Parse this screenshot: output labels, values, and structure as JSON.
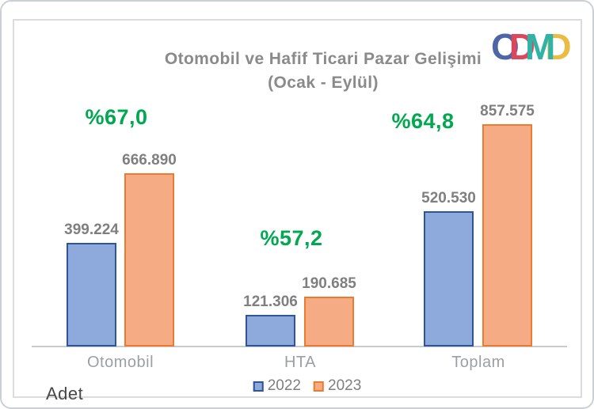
{
  "title": {
    "line1": "Otomobil ve Hafif Ticari Pazar Gelişimi",
    "line2": "(Ocak - Eylül)"
  },
  "logo": {
    "name": "ODMD",
    "letters": [
      {
        "char": "O",
        "color": "#4E66A8",
        "z": 1
      },
      {
        "char": "D",
        "color": "#D9485C",
        "z": 2
      },
      {
        "char": "M",
        "color": "#2FB3A4",
        "z": 4
      },
      {
        "char": "D",
        "color": "#EBBC44",
        "z": 3
      }
    ]
  },
  "axis_unit_label": "Adet",
  "legend": [
    {
      "label": "2022",
      "fill": "#8EA9DB",
      "border": "#2E5597"
    },
    {
      "label": "2023",
      "fill": "#F5AC85",
      "border": "#EC7B30"
    }
  ],
  "chart_data": {
    "type": "bar",
    "title": "Otomobil ve Hafif Ticari Pazar Gelişimi (Ocak - Eylül)",
    "categories": [
      "Otomobil",
      "HTA",
      "Toplam"
    ],
    "series": [
      {
        "name": "2022",
        "values": [
          399224,
          121306,
          520530
        ],
        "value_labels": [
          "399.224",
          "121.306",
          "520.530"
        ],
        "fill": "#8EA9DB",
        "border": "#2E5597"
      },
      {
        "name": "2023",
        "values": [
          666890,
          190685,
          857575
        ],
        "value_labels": [
          "666.890",
          "190.685",
          "857.575"
        ],
        "fill": "#F5AC85",
        "border": "#EC7B30"
      }
    ],
    "growth_labels": [
      "%67,0",
      "%57,2",
      "%64,8"
    ],
    "growth_values_percent": [
      67.0,
      57.2,
      64.8
    ],
    "growth_color": "#00A84F",
    "ylabel": "Adet",
    "grid": false,
    "legend_position": "bottom"
  }
}
